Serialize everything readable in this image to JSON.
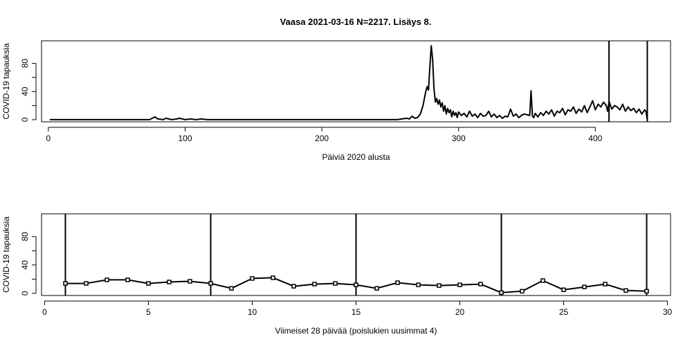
{
  "figure": {
    "title": "Vaasa 2021-03-16 N=2217. Lisäys 8."
  },
  "chart_data": [
    {
      "type": "line",
      "title": "Vaasa 2021-03-16 N=2217. Lisäys 8.",
      "xlabel": "Päiviä 2020 alusta",
      "ylabel": "COVID-19 tapauksia",
      "xlim": [
        -5,
        455
      ],
      "ylim": [
        -3,
        112
      ],
      "x_ticks": [
        0,
        100,
        200,
        300,
        400
      ],
      "y_ticks": [
        0,
        40,
        80
      ],
      "y_tick_labels": [
        "0",
        "40",
        "80"
      ],
      "vlines": [
        410,
        438
      ],
      "grid": false,
      "series": [
        {
          "x": [
            1,
            74,
            76,
            78,
            80,
            84,
            86,
            88,
            90,
            94,
            96,
            98,
            100,
            104,
            108,
            112,
            116,
            120,
            140,
            160,
            180,
            200,
            220,
            240,
            255,
            262,
            264,
            266,
            268,
            270,
            272,
            274,
            276,
            277,
            278,
            279,
            280,
            281,
            282,
            283,
            284,
            285,
            286,
            287,
            288,
            289,
            290,
            291,
            292,
            293,
            294,
            295,
            296,
            297,
            298,
            299,
            300,
            302,
            304,
            306,
            308,
            310,
            312,
            314,
            316,
            318,
            320,
            322,
            324,
            326,
            328,
            330,
            332,
            334,
            336,
            338,
            340,
            342,
            344,
            346,
            348,
            350,
            352,
            353,
            354,
            355,
            356,
            358,
            360,
            362,
            364,
            366,
            368,
            370,
            372,
            374,
            376,
            378,
            380,
            382,
            384,
            386,
            388,
            390,
            392,
            394,
            396,
            398,
            400,
            402,
            404,
            406,
            408,
            409,
            410,
            412,
            414,
            416,
            418,
            420,
            422,
            424,
            426,
            428,
            430,
            432,
            434,
            436,
            437,
            438
          ],
          "y": [
            0,
            0,
            2,
            4,
            1,
            0,
            2,
            1,
            0,
            1,
            2,
            1,
            0,
            1,
            0,
            1,
            0,
            0,
            0,
            0,
            0,
            0,
            0,
            0,
            0,
            2,
            1,
            5,
            2,
            3,
            8,
            20,
            40,
            47,
            42,
            75,
            105,
            85,
            45,
            25,
            30,
            22,
            28,
            18,
            24,
            12,
            20,
            8,
            16,
            10,
            14,
            4,
            12,
            6,
            10,
            3,
            11,
            6,
            9,
            4,
            12,
            5,
            8,
            3,
            9,
            5,
            6,
            12,
            4,
            8,
            3,
            6,
            2,
            5,
            4,
            15,
            5,
            8,
            3,
            6,
            8,
            7,
            6,
            41,
            5,
            3,
            9,
            4,
            10,
            6,
            12,
            8,
            14,
            5,
            12,
            10,
            16,
            7,
            14,
            12,
            18,
            9,
            15,
            11,
            20,
            10,
            18,
            27,
            14,
            22,
            18,
            25,
            20,
            12,
            26,
            15,
            20,
            18,
            14,
            22,
            12,
            18,
            13,
            16,
            10,
            15,
            8,
            14,
            12,
            0
          ]
        }
      ]
    },
    {
      "type": "line",
      "xlabel": "Viimeiset 28 päivää (poislukien uusimmat 4)",
      "ylabel": "COVID-19 tapauksia",
      "xlim": [
        -0.15,
        30.15
      ],
      "ylim": [
        -3,
        112
      ],
      "x_ticks": [
        0,
        5,
        10,
        15,
        20,
        25,
        30
      ],
      "y_ticks": [
        0,
        40,
        80
      ],
      "y_tick_labels": [
        "0",
        "40",
        "80"
      ],
      "vlines": [
        1,
        8,
        15,
        22,
        29
      ],
      "grid": false,
      "series": [
        {
          "x": [
            1,
            2,
            3,
            4,
            5,
            6,
            7,
            8,
            9,
            10,
            11,
            12,
            13,
            14,
            15,
            16,
            17,
            18,
            19,
            20,
            21,
            22,
            23,
            24,
            25,
            26,
            27,
            28,
            29
          ],
          "y": [
            14,
            14,
            19,
            19,
            14,
            16,
            17,
            14,
            7,
            21,
            22,
            10,
            13,
            14,
            12,
            7,
            15,
            12,
            11,
            12,
            13,
            1,
            3,
            18,
            5,
            9,
            13,
            4,
            3
          ]
        }
      ]
    }
  ]
}
